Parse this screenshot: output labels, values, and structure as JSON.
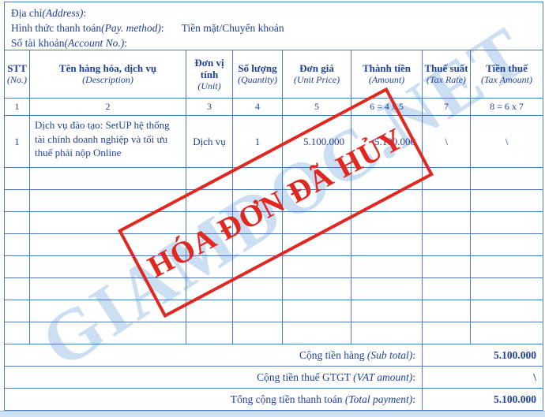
{
  "info": {
    "address": {
      "vi": "Địa chỉ",
      "en": "(Address)",
      "colon": ":"
    },
    "pay_method": {
      "vi": "Hình thức thanh toán",
      "en": "(Pay. method)",
      "colon": ":",
      "value": "Tiền mặt/Chuyển khoản"
    },
    "account_no": {
      "vi": "Số tài khoản",
      "en": "(Account No.)",
      "colon": ":"
    }
  },
  "table": {
    "columns": [
      {
        "vi": "STT",
        "en": "(No.)",
        "num": "1"
      },
      {
        "vi": "Tên hàng hóa, dịch vụ",
        "en": "(Description)",
        "num": "2"
      },
      {
        "vi": "Đơn vị tính",
        "en": "(Unit)",
        "num": "3"
      },
      {
        "vi": "Số lượng",
        "en": "(Quantity)",
        "num": "4"
      },
      {
        "vi": "Đơn giá",
        "en": "(Unit Price)",
        "num": "5"
      },
      {
        "vi": "Thành tiền",
        "en": "(Amount)",
        "num": "6 = 4 x 5"
      },
      {
        "vi": "Thuế suất",
        "en": "(Tax Rate)",
        "num": "7"
      },
      {
        "vi": "Tiền thuế",
        "en": "(Tax Amount)",
        "num": "8 = 6 x 7"
      }
    ],
    "rows": [
      {
        "stt": "1",
        "description": "Dịch vụ đào tạo: SetUP hệ thống tài chính doanh nghiệp và tối ưu thuế phải nộp Online",
        "unit": "Dịch vụ",
        "quantity": "1",
        "unit_price": "5.100.000",
        "amount": "5.100.000",
        "tax_rate": "\\",
        "tax_amount": "\\"
      }
    ],
    "empty_row_count": 8,
    "totals": [
      {
        "vi": "Cộng tiền hàng",
        "en": "(Sub total)",
        "colon": ":",
        "value": "5.100.000"
      },
      {
        "vi": "Cộng tiền thuế GTGT",
        "en": "(VAT amount)",
        "colon": ":",
        "value": "\\"
      },
      {
        "vi": "Tổng cộng tiền thanh toán",
        "en": "(Total payment)",
        "colon": ":",
        "value": "5.100.000"
      }
    ]
  },
  "stamp": {
    "text": "HÓA ĐƠN ĐÃ HỦY",
    "color": "#e02820"
  },
  "watermark": {
    "text": "GIAMDOC.NET",
    "color": "#cbdef2"
  },
  "colors": {
    "text": "#20409a",
    "border": "#4a7db8",
    "footer_bar": "#cfe1f5"
  }
}
